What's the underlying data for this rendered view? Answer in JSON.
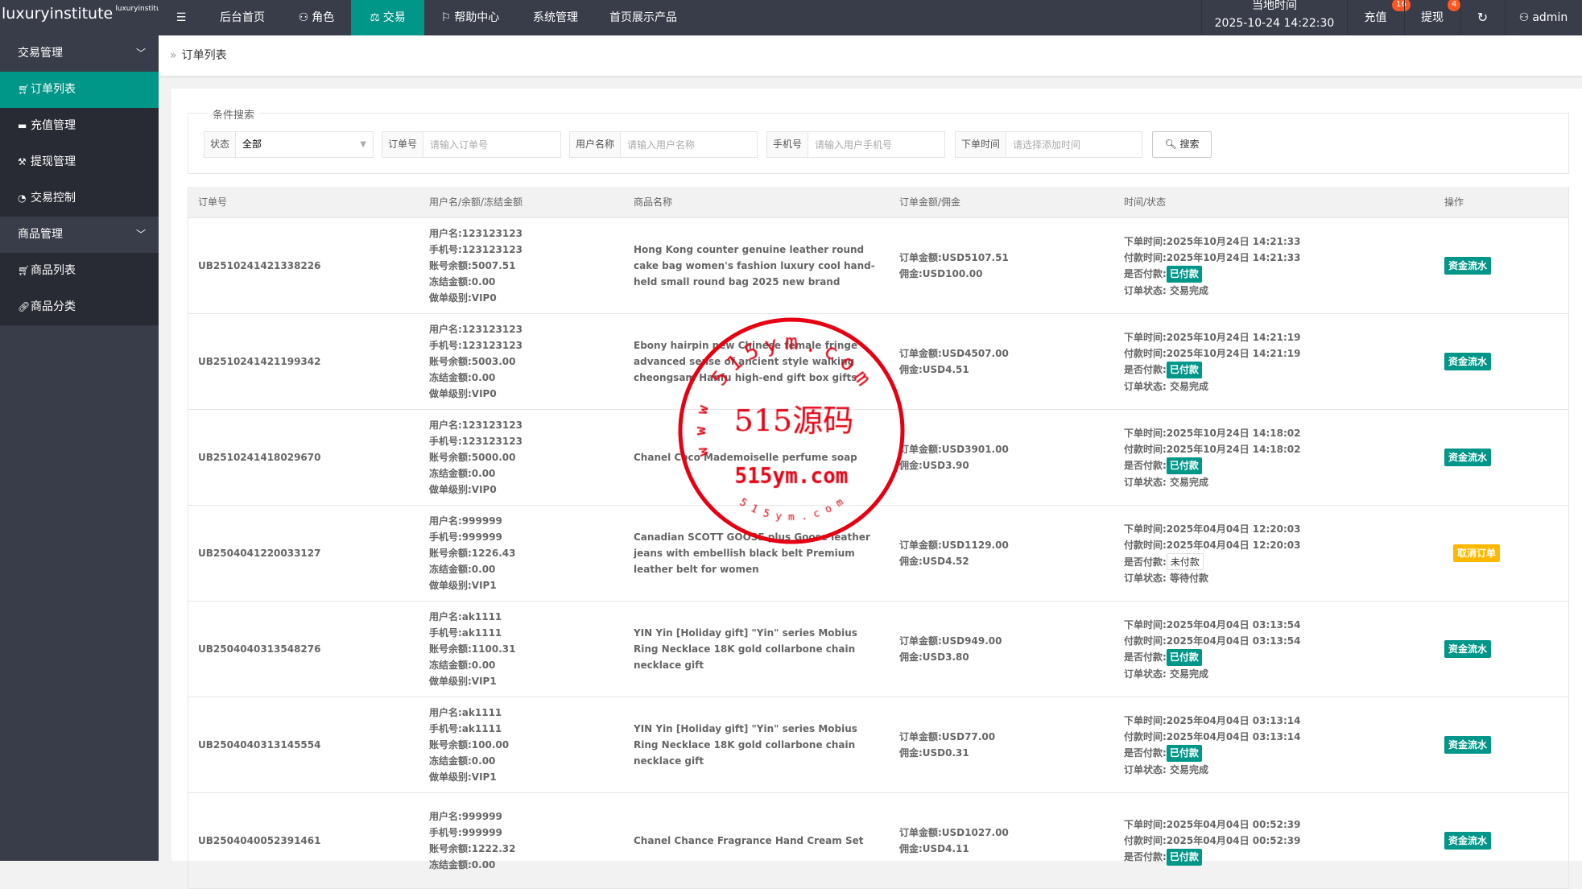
{
  "header": {
    "logo": "luxuryinstitute",
    "logo_sup": "luxuryinstitute",
    "nav": [
      {
        "label": "后台首页",
        "icon": ""
      },
      {
        "label": "角色",
        "icon": "user-icon"
      },
      {
        "label": "交易",
        "icon": "scale-icon",
        "active": true
      },
      {
        "label": "帮助中心",
        "icon": "flag-icon"
      },
      {
        "label": "系统管理",
        "icon": ""
      },
      {
        "label": "首页展示产品",
        "icon": ""
      }
    ],
    "clock_label": "当地时间",
    "clock_value": "2025-10-24 14:22:30",
    "recharge": "充值",
    "recharge_badge": "16",
    "withdraw": "提现",
    "withdraw_badge": "4",
    "user": "admin"
  },
  "sidebar": {
    "groups": [
      {
        "label": "交易管理",
        "items": [
          {
            "label": "订单列表",
            "icon": "cart-icon",
            "active": true
          },
          {
            "label": "充值管理",
            "icon": "chat-icon"
          },
          {
            "label": "提现管理",
            "icon": "hammer-icon"
          },
          {
            "label": "交易控制",
            "icon": "gauge-icon"
          }
        ]
      },
      {
        "label": "商品管理",
        "items": [
          {
            "label": "商品列表",
            "icon": "cart-icon"
          },
          {
            "label": "商品分类",
            "icon": "link-icon"
          }
        ]
      }
    ]
  },
  "breadcrumb": "订单列表",
  "search": {
    "legend": "条件搜索",
    "status_label": "状态",
    "status_value": "全部",
    "order_label": "订单号",
    "order_ph": "请输入订单号",
    "user_label": "用户名称",
    "user_ph": "请输入用户名称",
    "phone_label": "手机号",
    "phone_ph": "请输入用户手机号",
    "time_label": "下单时间",
    "time_ph": "请选择添加时间",
    "button": "搜索"
  },
  "table": {
    "headers": [
      "订单号",
      "用户名/余额/冻结金额",
      "商品名称",
      "订单金额/佣金",
      "时间/状态",
      "操作"
    ],
    "rows": [
      {
        "id": "UB2510241421338226",
        "user": [
          "用户名:123123123",
          "手机号:123123123",
          "账号余额:5007.51",
          "冻结金额:0.00",
          "做单级别:VIP0"
        ],
        "product": "Hong Kong counter genuine leather round cake bag women's fashion luxury cool hand-held small round bag 2025 new brand",
        "amount": "订单金额:USD5107.51",
        "commission": "佣金:USD100.00",
        "order_time": "下单时间:2025年10月24日 14:21:33",
        "pay_time": "付款时间:2025年10月24日 14:21:33",
        "paid_label": "是否付款:",
        "paid": "已付款",
        "is_paid": true,
        "status": "订单状态: 交易完成",
        "action": "资金流水"
      },
      {
        "id": "UB2510241421199342",
        "user": [
          "用户名:123123123",
          "手机号:123123123",
          "账号余额:5003.00",
          "冻结金额:0.00",
          "做单级别:VIP0"
        ],
        "product": "Ebony hairpin new Chinese female fringe advanced sense of ancient style walking cheongsam Hanfu high-end gift box gifts",
        "amount": "订单金额:USD4507.00",
        "commission": "佣金:USD4.51",
        "order_time": "下单时间:2025年10月24日 14:21:19",
        "pay_time": "付款时间:2025年10月24日 14:21:19",
        "paid_label": "是否付款:",
        "paid": "已付款",
        "is_paid": true,
        "status": "订单状态: 交易完成",
        "action": "资金流水"
      },
      {
        "id": "UB2510241418029670",
        "user": [
          "用户名:123123123",
          "手机号:123123123",
          "账号余额:5000.00",
          "冻结金额:0.00",
          "做单级别:VIP0"
        ],
        "product": "Chanel Coco Mademoiselle perfume soap",
        "amount": "订单金额:USD3901.00",
        "commission": "佣金:USD3.90",
        "order_time": "下单时间:2025年10月24日 14:18:02",
        "pay_time": "付款时间:2025年10月24日 14:18:02",
        "paid_label": "是否付款:",
        "paid": "已付款",
        "is_paid": true,
        "status": "订单状态: 交易完成",
        "action": "资金流水"
      },
      {
        "id": "UB2504041220033127",
        "user": [
          "用户名:999999",
          "手机号:999999",
          "账号余额:1226.43",
          "冻结金额:0.00",
          "做单级别:VIP1"
        ],
        "product": "Canadian SCOTT GOOSE plus Goose leather jeans with embellish black belt Premium leather belt for women",
        "amount": "订单金额:USD1129.00",
        "commission": "佣金:USD4.52",
        "order_time": "下单时间:2025年04月04日 12:20:03",
        "pay_time": "付款时间:2025年04月04日 12:20:03",
        "paid_label": "是否付款:",
        "paid": "未付款",
        "is_paid": false,
        "status": "订单状态: 等待付款",
        "action": "取消订单"
      },
      {
        "id": "UB2504040313548276",
        "user": [
          "用户名:ak1111",
          "手机号:ak1111",
          "账号余额:1100.31",
          "冻结金额:0.00",
          "做单级别:VIP1"
        ],
        "product": "YIN Yin [Holiday gift] \"Yin\" series Mobius Ring Necklace 18K gold collarbone chain necklace gift",
        "amount": "订单金额:USD949.00",
        "commission": "佣金:USD3.80",
        "order_time": "下单时间:2025年04月04日 03:13:54",
        "pay_time": "付款时间:2025年04月04日 03:13:54",
        "paid_label": "是否付款:",
        "paid": "已付款",
        "is_paid": true,
        "status": "订单状态: 交易完成",
        "action": "资金流水"
      },
      {
        "id": "UB2504040313145554",
        "user": [
          "用户名:ak1111",
          "手机号:ak1111",
          "账号余额:100.00",
          "冻结金额:0.00",
          "做单级别:VIP1"
        ],
        "product": "YIN Yin [Holiday gift] \"Yin\" series Mobius Ring Necklace 18K gold collarbone chain necklace gift",
        "amount": "订单金额:USD77.00",
        "commission": "佣金:USD0.31",
        "order_time": "下单时间:2025年04月04日 03:13:14",
        "pay_time": "付款时间:2025年04月04日 03:13:14",
        "paid_label": "是否付款:",
        "paid": "已付款",
        "is_paid": true,
        "status": "订单状态: 交易完成",
        "action": "资金流水"
      },
      {
        "id": "UB2504040052391461",
        "user": [
          "用户名:999999",
          "手机号:999999",
          "账号余额:1222.32",
          "冻结金额:0.00"
        ],
        "product": "Chanel Chance Fragrance Hand Cream Set",
        "amount": "订单金额:USD1027.00",
        "commission": "佣金:USD4.11",
        "order_time": "下单时间:2025年04月04日 00:52:39",
        "pay_time": "付款时间:2025年04月04日 00:52:39",
        "paid_label": "是否付款:",
        "paid": "已付款",
        "is_paid": true,
        "status": "",
        "action": "资金流水"
      }
    ]
  },
  "watermark": {
    "center": "515源码",
    "url": "515ym.com",
    "arc_top": "515ym.com",
    "left": "www",
    "bottom": "515ym.com",
    "color": "#e60012"
  },
  "colors": {
    "accent": "#009688",
    "topbar": "#393d49",
    "warn": "#ffb800",
    "badge": "#ff5722"
  }
}
